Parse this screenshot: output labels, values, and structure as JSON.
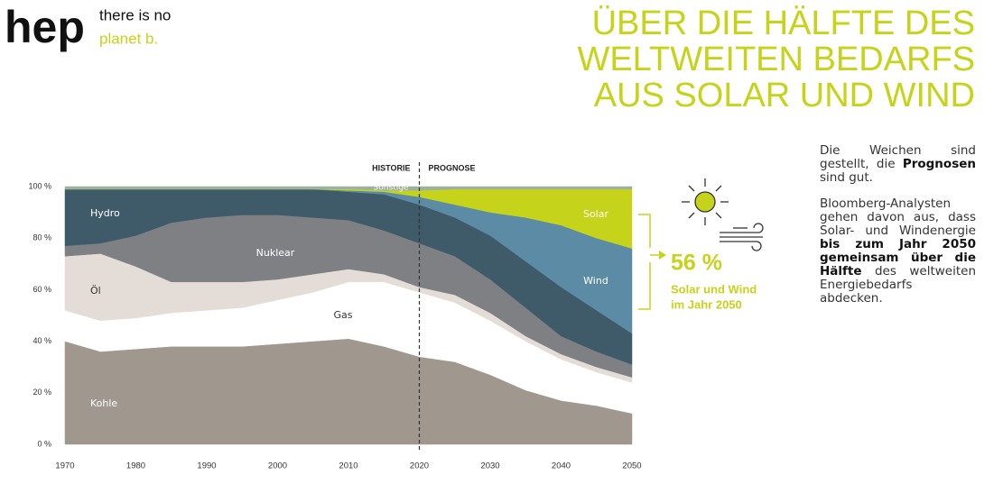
{
  "header": {
    "logo": "hep",
    "tagline": [
      "there is no",
      "planet b."
    ],
    "title": [
      "ÜBER DIE HÄLFTE DES",
      "WELTWEITEN BEDARFS",
      "AUS SOLAR UND WIND"
    ]
  },
  "chart_data": {
    "type": "stacked_area",
    "x": [
      1970,
      1975,
      1980,
      1985,
      1990,
      1995,
      2000,
      2005,
      2010,
      2015,
      2020,
      2025,
      2030,
      2035,
      2040,
      2045,
      2050
    ],
    "series": [
      {
        "name": "Kohle",
        "color": "#a0978f",
        "values": [
          40,
          36,
          37,
          38,
          38,
          38,
          39,
          40,
          41,
          38,
          34,
          32,
          27,
          21,
          17,
          15,
          12
        ]
      },
      {
        "name": "Gas",
        "color": "#ffffff",
        "values": [
          12,
          12,
          12,
          13,
          14,
          15,
          17,
          19,
          22,
          25,
          25,
          23,
          21,
          19,
          16,
          13,
          12
        ]
      },
      {
        "name": "Öl",
        "color": "#e4ddd7",
        "values": [
          21,
          26,
          20,
          12,
          11,
          10,
          8,
          7,
          5,
          3,
          2,
          3,
          3,
          2,
          2,
          2,
          2
        ]
      },
      {
        "name": "Nuklear",
        "color": "#7e8084",
        "values": [
          4,
          4,
          12,
          23,
          25,
          26,
          25,
          22,
          19,
          17,
          17,
          15,
          13,
          11,
          7,
          6,
          5
        ]
      },
      {
        "name": "Hydro",
        "color": "#3f5b6a",
        "values": [
          22,
          21,
          18,
          13,
          11,
          10,
          10,
          11,
          11,
          14,
          15,
          15,
          17,
          18,
          19,
          16,
          12
        ]
      },
      {
        "name": "Wind",
        "color": "#5b8ba5",
        "values": [
          0,
          0,
          0,
          0,
          0,
          0,
          0,
          0,
          0.5,
          1,
          3,
          5,
          9,
          17,
          24,
          28,
          33
        ]
      },
      {
        "name": "Solar",
        "color": "#c6d31b",
        "values": [
          0,
          0,
          0,
          0,
          0,
          0,
          0,
          0,
          0.5,
          0.5,
          2.5,
          6,
          9,
          11,
          14,
          19,
          23
        ]
      },
      {
        "name": "Sonstige",
        "color": "#9db29c",
        "values": [
          1,
          1,
          1,
          1,
          1,
          1,
          1,
          1,
          1,
          1.5,
          1.5,
          1,
          1,
          1,
          1,
          1,
          1
        ]
      }
    ],
    "xlim": [
      1970,
      2050
    ],
    "xticks": [
      1970,
      1980,
      1990,
      2000,
      2010,
      2020,
      2030,
      2040,
      2050
    ],
    "ylim": [
      0,
      100
    ],
    "yticks": [
      {
        "value": 0,
        "label": "0 %"
      },
      {
        "value": 20,
        "label": "20 %"
      },
      {
        "value": 40,
        "label": "40 %"
      },
      {
        "value": 60,
        "label": "60 %"
      },
      {
        "value": 80,
        "label": "80 %"
      },
      {
        "value": 100,
        "label": "100 %"
      }
    ],
    "period_split": 2020,
    "period_labels": [
      "HISTORIE",
      "PROGNOSE"
    ]
  },
  "callout": {
    "value_label": "56 %",
    "text": [
      "Solar und Wind",
      "im Jahr 2050"
    ]
  },
  "sidebar": {
    "paragraphs": [
      [
        {
          "text": "Die Weichen sind gestellt, die "
        },
        {
          "text": "Prognosen",
          "bold": true
        },
        {
          "text": " sind gut."
        }
      ],
      [
        {
          "text": "Bloomberg-Analysten gehen davon aus, dass Solar- und Windenergie "
        },
        {
          "text": "bis zum Jahr 2050 gemeinsam über die Hälfte",
          "bold": true
        },
        {
          "text": " des weltweiten Energiebedarfs abdecken."
        }
      ]
    ]
  }
}
